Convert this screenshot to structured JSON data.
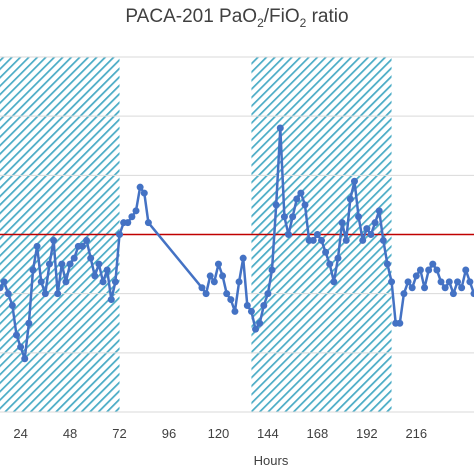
{
  "chart_data": {
    "type": "line",
    "title_prefix": "PACA-201 PaO",
    "title_sub1": "2",
    "title_mid": "/FiO",
    "title_sub2": "2",
    "title_suffix": " ratio",
    "xlabel": "Hours",
    "ylabel": "",
    "x_ticks": [
      24,
      48,
      72,
      96,
      120,
      144,
      168,
      192,
      216
    ],
    "xlim": [
      14,
      244
    ],
    "ylim": [
      0,
      6
    ],
    "y_gridlines": [
      0,
      1,
      2,
      3,
      4,
      5,
      6
    ],
    "grid": "horizontal",
    "reference_line": {
      "y": 3.0,
      "color": "#c00000"
    },
    "shaded_regions": [
      {
        "x_start": 14,
        "x_end": 72
      },
      {
        "x_start": 136,
        "x_end": 204
      }
    ],
    "colors": {
      "series": "#4472c4",
      "reference": "#c00000",
      "shade": "#4bacc6"
    },
    "series": [
      {
        "x": [
          14,
          16,
          18,
          20,
          22,
          24,
          26,
          28,
          30,
          32,
          34,
          36,
          38,
          40,
          42,
          44,
          46,
          48,
          50,
          52,
          54,
          56,
          58,
          60,
          62,
          64,
          66,
          68,
          70,
          72,
          74,
          76,
          78,
          80,
          82,
          84,
          86,
          112,
          114,
          116,
          118,
          120,
          122,
          124,
          126,
          128,
          130,
          132,
          134,
          136,
          138,
          140,
          142,
          144,
          146,
          148,
          150,
          152,
          154,
          156,
          158,
          160,
          162,
          164,
          166,
          168,
          170,
          172,
          174,
          176,
          178,
          180,
          182,
          184,
          186,
          188,
          190,
          192,
          194,
          196,
          198,
          200,
          202,
          204,
          206,
          208,
          210,
          212,
          214,
          216,
          218,
          220,
          222,
          224,
          226,
          228,
          230,
          232,
          234,
          236,
          238,
          240,
          242,
          244
        ],
        "y": [
          2.1,
          2.2,
          2.0,
          1.8,
          1.3,
          1.1,
          0.9,
          1.5,
          2.4,
          2.8,
          2.2,
          2.0,
          2.5,
          2.9,
          2.0,
          2.5,
          2.2,
          2.5,
          2.6,
          2.8,
          2.8,
          2.9,
          2.6,
          2.3,
          2.5,
          2.2,
          2.4,
          1.9,
          2.2,
          3.0,
          3.2,
          3.2,
          3.3,
          3.4,
          3.8,
          3.7,
          3.2,
          2.1,
          2.0,
          2.3,
          2.2,
          2.5,
          2.3,
          2.0,
          1.9,
          1.7,
          2.2,
          2.6,
          1.8,
          1.7,
          1.4,
          1.5,
          1.8,
          2.0,
          2.4,
          3.5,
          4.8,
          3.3,
          3.0,
          3.3,
          3.6,
          3.7,
          3.5,
          2.9,
          2.9,
          3.0,
          2.9,
          2.7,
          2.5,
          2.2,
          2.6,
          3.2,
          2.9,
          3.6,
          3.9,
          3.3,
          2.9,
          3.1,
          3.0,
          3.2,
          3.4,
          2.9,
          2.5,
          2.2,
          1.5,
          1.5,
          2.0,
          2.2,
          2.1,
          2.3,
          2.4,
          2.1,
          2.4,
          2.5,
          2.4,
          2.2,
          2.1,
          2.2,
          2.0,
          2.2,
          2.1,
          2.4,
          2.2,
          2.0
        ]
      }
    ]
  }
}
